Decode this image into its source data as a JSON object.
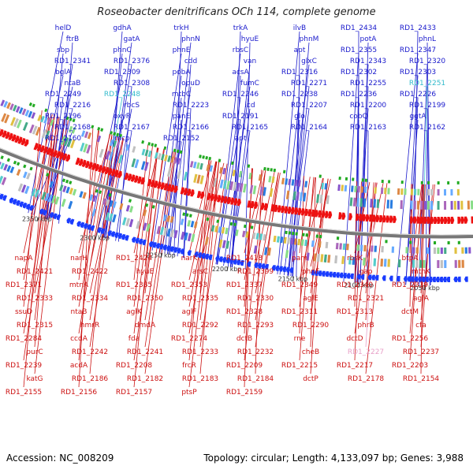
{
  "title": "Roseobacter denitrificans OCh 114, complete genome",
  "footer": {
    "accession": "Accession: NC_008209",
    "summary": "Topology: circular; Length: 4,133,097 bp; Genes: 3,988"
  },
  "colors": {
    "forward_label": "#1a1acc",
    "reverse_label": "#cc1111",
    "highlight_label": "#33bbcc",
    "pink_label": "#e8a0c8",
    "forward_arrow": "#1a3cff",
    "reverse_arrow": "#ee1111",
    "backbone": "#777777"
  },
  "ticks": [
    "2350 kbp",
    "2300 kbp",
    "2250 kbp",
    "2200 kbp",
    "2150 kbp",
    "2100 kbp",
    "2050 kbp"
  ],
  "forward_labels": [
    "helD",
    "gdhA",
    "trkH",
    "trkA",
    "ilvB",
    "RD1_2434",
    "RD1_2433",
    "ftrB",
    "gatA",
    "phnN",
    "hyuE",
    "phnM",
    "potA",
    "phnL",
    "sbp",
    "phnC",
    "phnE",
    "rbsC",
    "apt",
    "RD1_2355",
    "RD1_2347",
    "RD1_2341",
    "RD1_2376",
    "cdd",
    "van",
    "glxC",
    "RD1_2343",
    "RD1_2320",
    "bglA",
    "RD1_2309",
    "pobA",
    "acsA",
    "RD1_2316",
    "RD1_2302",
    "RD1_2303",
    "ntaB",
    "RD1_2308",
    "opuD",
    "fumC",
    "RD1_2271",
    "RD1_2255",
    "RD1_2251",
    "RD1_2249",
    "RD1_2248",
    "mtbC",
    "RD1_2246",
    "RD1_2238",
    "RD1_2236",
    "RD1_2226",
    "RD1_2216",
    "rbcS",
    "RD1_2223",
    "icd",
    "RD1_2207",
    "RD1_2200",
    "RD1_2199",
    "RD1_2196",
    "oxyR",
    "panE",
    "RD1_2191",
    "glo",
    "cobQ",
    "ggtA",
    "RD1_2168",
    "RD1_2167",
    "RD1_2166",
    "RD1_2165",
    "RD1_2164",
    "RD1_2163",
    "RD1_2162",
    "RD1_2160",
    "mcp",
    "RD1_2152",
    "apt"
  ],
  "reverse_labels": [
    "napA",
    "narH",
    "RD1_2424",
    "narK",
    "RD1_2418",
    "pam",
    "rbsK",
    "btpA",
    "RD1_2421",
    "RD1_2422",
    "hyuE",
    "arsC",
    "RD1_2399",
    "phnF",
    "gap",
    "mtnK",
    "RD1_2371",
    "mtnA",
    "RD1_2385",
    "RD1_2353",
    "RD1_2337",
    "RD1_2349",
    "RD1_2340",
    "RD1_2339",
    "RD1_2333",
    "RD1_2334",
    "RD1_2350",
    "RD1_2335",
    "RD1_2330",
    "aglE",
    "RD1_2321",
    "aglA",
    "ssuD",
    "ntaB",
    "aglK",
    "aglF",
    "RD1_2328",
    "RD1_2311",
    "RD1_2313",
    "dctM",
    "RD1_2315",
    "hmrR",
    "dmdA",
    "RD1_2292",
    "RD1_2293",
    "RD1_2290",
    "phrB",
    "cfa",
    "RD1_2284",
    "ccdA",
    "fda",
    "RD1_2274",
    "dctB",
    "rne",
    "dctD",
    "RD1_2256",
    "purC",
    "RD1_2242",
    "RD1_2241",
    "RD1_2233",
    "RD1_2232",
    "cheB",
    "RD1_2227",
    "RD1_2237",
    "RD1_2239",
    "acdA",
    "RD1_2208",
    "frcR",
    "RD1_2209",
    "RD1_2215",
    "RD1_2217",
    "RD1_2203",
    "katG",
    "RD1_2186",
    "RD1_2182",
    "RD1_2183",
    "RD1_2184",
    "dctP",
    "RD1_2178",
    "RD1_2154",
    "RD1_2155",
    "RD1_2156",
    "RD1_2157",
    "ptsP",
    "RD1_2159"
  ]
}
